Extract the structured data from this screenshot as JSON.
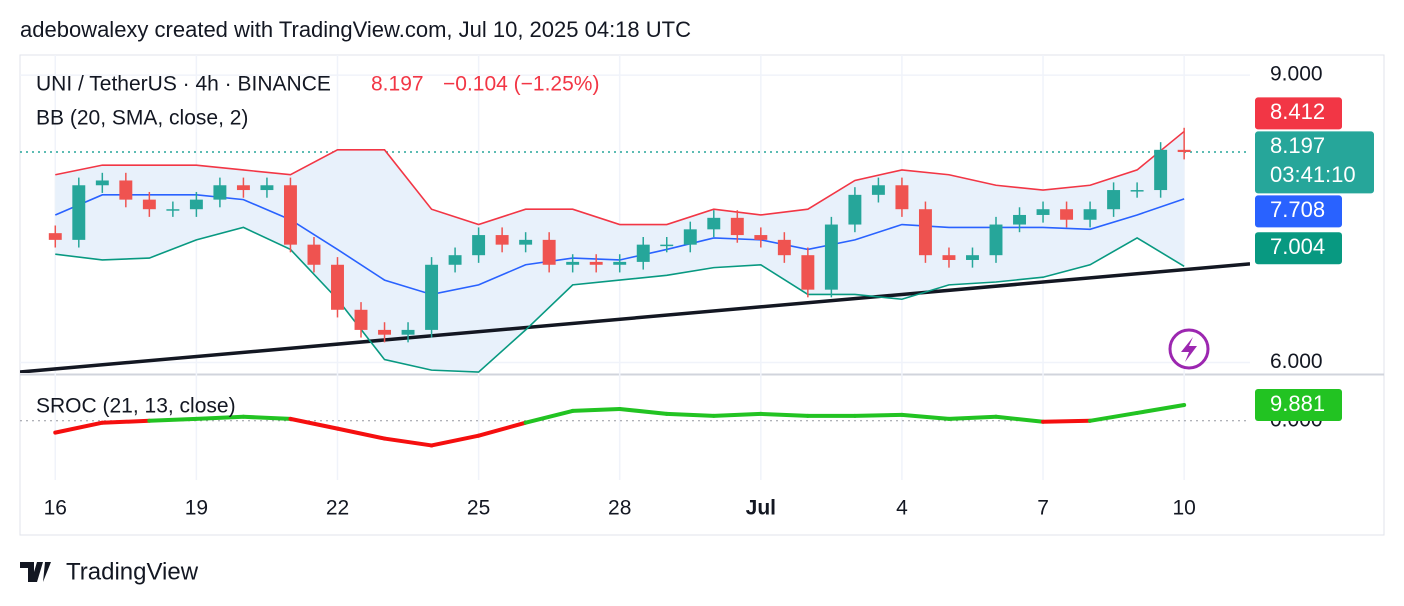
{
  "header": {
    "credit": "adebowalexy created with TradingView.com, Jul 10, 2025 04:18 UTC",
    "change": "−0.104 (−1.25%)",
    "countdown": "03:41:10",
    "brand": "TradingView"
  },
  "chart_data": [
    {
      "type": "candlestick",
      "title": "UNI / TetherUS · 4h · BINANCE",
      "indicator": "BB (20, SMA, close, 2)",
      "up_color": "#26a69a",
      "down_color": "#ef5350",
      "x": [
        0,
        0.5,
        1,
        1.5,
        2,
        2.5,
        3,
        3.5,
        4,
        4.5,
        5,
        5.5,
        6,
        6.5,
        7,
        7.5,
        8,
        8.5,
        9,
        9.5,
        10,
        10.5,
        11,
        11.5,
        12,
        12.5,
        13,
        13.5,
        14,
        14.5,
        15,
        15.5,
        16,
        16.5,
        17,
        17.5,
        18,
        18.5,
        19,
        19.5,
        20,
        20.5,
        21,
        21.5,
        22,
        22.5,
        23,
        23.5,
        24
      ],
      "open": [
        7.35,
        7.28,
        7.85,
        7.9,
        7.7,
        7.6,
        7.6,
        7.7,
        7.85,
        7.8,
        7.85,
        7.23,
        7.02,
        6.55,
        6.34,
        6.29,
        6.34,
        7.02,
        7.12,
        7.33,
        7.23,
        7.28,
        7.02,
        7.05,
        7.02,
        7.05,
        7.23,
        7.23,
        7.39,
        7.51,
        7.33,
        7.28,
        7.12,
        6.76,
        7.44,
        7.75,
        7.85,
        7.6,
        7.12,
        7.07,
        7.12,
        7.44,
        7.54,
        7.6,
        7.49,
        7.6,
        7.8,
        7.8,
        8.22
      ],
      "high": [
        7.43,
        7.93,
        7.98,
        7.98,
        7.78,
        7.68,
        7.78,
        7.93,
        7.93,
        7.93,
        7.93,
        7.31,
        7.1,
        6.63,
        6.42,
        6.42,
        7.1,
        7.2,
        7.41,
        7.41,
        7.36,
        7.36,
        7.13,
        7.13,
        7.13,
        7.31,
        7.31,
        7.47,
        7.59,
        7.59,
        7.41,
        7.36,
        7.2,
        7.52,
        7.83,
        7.93,
        7.93,
        7.68,
        7.2,
        7.2,
        7.52,
        7.62,
        7.68,
        7.68,
        7.68,
        7.88,
        7.88,
        8.3,
        8.45
      ],
      "low": [
        7.2,
        7.2,
        7.77,
        7.62,
        7.52,
        7.52,
        7.52,
        7.62,
        7.72,
        7.72,
        7.15,
        6.94,
        6.47,
        6.26,
        6.21,
        6.21,
        6.26,
        6.94,
        7.04,
        7.15,
        7.15,
        6.94,
        6.94,
        6.94,
        6.94,
        6.97,
        7.15,
        7.15,
        7.31,
        7.25,
        7.2,
        7.04,
        6.68,
        6.68,
        7.36,
        7.67,
        7.52,
        7.04,
        6.99,
        6.99,
        7.04,
        7.36,
        7.46,
        7.41,
        7.41,
        7.52,
        7.72,
        7.72,
        8.12
      ],
      "close": [
        7.28,
        7.85,
        7.9,
        7.7,
        7.6,
        7.6,
        7.7,
        7.85,
        7.8,
        7.85,
        7.23,
        7.02,
        6.55,
        6.34,
        6.29,
        6.34,
        7.02,
        7.12,
        7.33,
        7.23,
        7.28,
        7.02,
        7.05,
        7.02,
        7.05,
        7.23,
        7.23,
        7.39,
        7.51,
        7.33,
        7.28,
        7.12,
        6.76,
        7.44,
        7.75,
        7.85,
        7.6,
        7.12,
        7.07,
        7.12,
        7.44,
        7.54,
        7.6,
        7.49,
        7.6,
        7.8,
        7.8,
        8.22,
        8.197
      ],
      "bands": {
        "x": [
          0,
          1,
          2,
          3,
          4,
          5,
          6,
          7,
          8,
          9,
          10,
          11,
          12,
          13,
          14,
          15,
          16,
          17,
          18,
          19,
          20,
          21,
          22,
          23,
          24
        ],
        "fill": "#e8f1fb",
        "series": [
          {
            "color": "#f23645",
            "values": [
              7.96,
              8.06,
              8.06,
              8.06,
              8.01,
              7.96,
              8.22,
              8.22,
              7.6,
              7.44,
              7.6,
              7.6,
              7.44,
              7.44,
              7.6,
              7.54,
              7.6,
              7.9,
              8.01,
              7.96,
              7.85,
              7.8,
              7.85,
              8.01,
              8.412
            ]
          },
          {
            "color": "#2962ff",
            "values": [
              7.54,
              7.75,
              7.75,
              7.75,
              7.7,
              7.49,
              7.18,
              6.86,
              6.71,
              6.81,
              7.02,
              7.09,
              7.07,
              7.18,
              7.3,
              7.28,
              7.18,
              7.28,
              7.44,
              7.41,
              7.41,
              7.41,
              7.39,
              7.54,
              7.708
            ]
          },
          {
            "color": "#089981",
            "values": [
              7.13,
              7.07,
              7.09,
              7.28,
              7.41,
              7.18,
              6.66,
              6.03,
              5.92,
              5.9,
              6.34,
              6.81,
              6.86,
              6.91,
              6.99,
              7.02,
              6.71,
              6.71,
              6.66,
              6.81,
              6.84,
              6.89,
              7.02,
              7.3,
              7.004
            ]
          }
        ]
      },
      "trendline": {
        "x": [
          -0.75,
          25.4
        ],
        "values": [
          5.9,
          7.03
        ],
        "color": "#131722"
      },
      "xlim": [
        -0.75,
        25.4
      ],
      "xticks": [
        {
          "value": 0,
          "label": "16"
        },
        {
          "value": 3,
          "label": "19"
        },
        {
          "value": 6,
          "label": "22"
        },
        {
          "value": 9,
          "label": "25"
        },
        {
          "value": 12,
          "label": "28"
        },
        {
          "value": 15,
          "label": "Jul"
        },
        {
          "value": 18,
          "label": "4"
        },
        {
          "value": 21,
          "label": "7"
        },
        {
          "value": 24,
          "label": "10"
        }
      ],
      "ylim": [
        5.89,
        9.21
      ],
      "yticks": [
        {
          "value": 6,
          "label": "6.000"
        },
        {
          "value": 9,
          "label": "9.000"
        }
      ],
      "grid": true
    },
    {
      "type": "line",
      "title": "SROC (21, 13, close)",
      "x": [
        0,
        1,
        2,
        3,
        4,
        5,
        6,
        7,
        8,
        9,
        10,
        11,
        12,
        13,
        14,
        15,
        16,
        17,
        18,
        19,
        20,
        21,
        22,
        23,
        24
      ],
      "values": [
        -7.4,
        -1.2,
        0,
        1.2,
        2.5,
        1.2,
        -4.9,
        -11.1,
        -15.4,
        -9.3,
        -1.2,
        6.2,
        7.4,
        4.3,
        3.1,
        4.3,
        3.1,
        3.1,
        3.7,
        1.2,
        2.5,
        -0.6,
        0,
        4.9,
        9.881
      ],
      "positive_color": "#22c322",
      "negative_color": "#f50f0f",
      "xlim": [
        -0.75,
        25.4
      ],
      "ylim": [
        -37,
        28
      ],
      "yticks": [
        {
          "value": 0,
          "label": "0.000"
        }
      ]
    }
  ]
}
